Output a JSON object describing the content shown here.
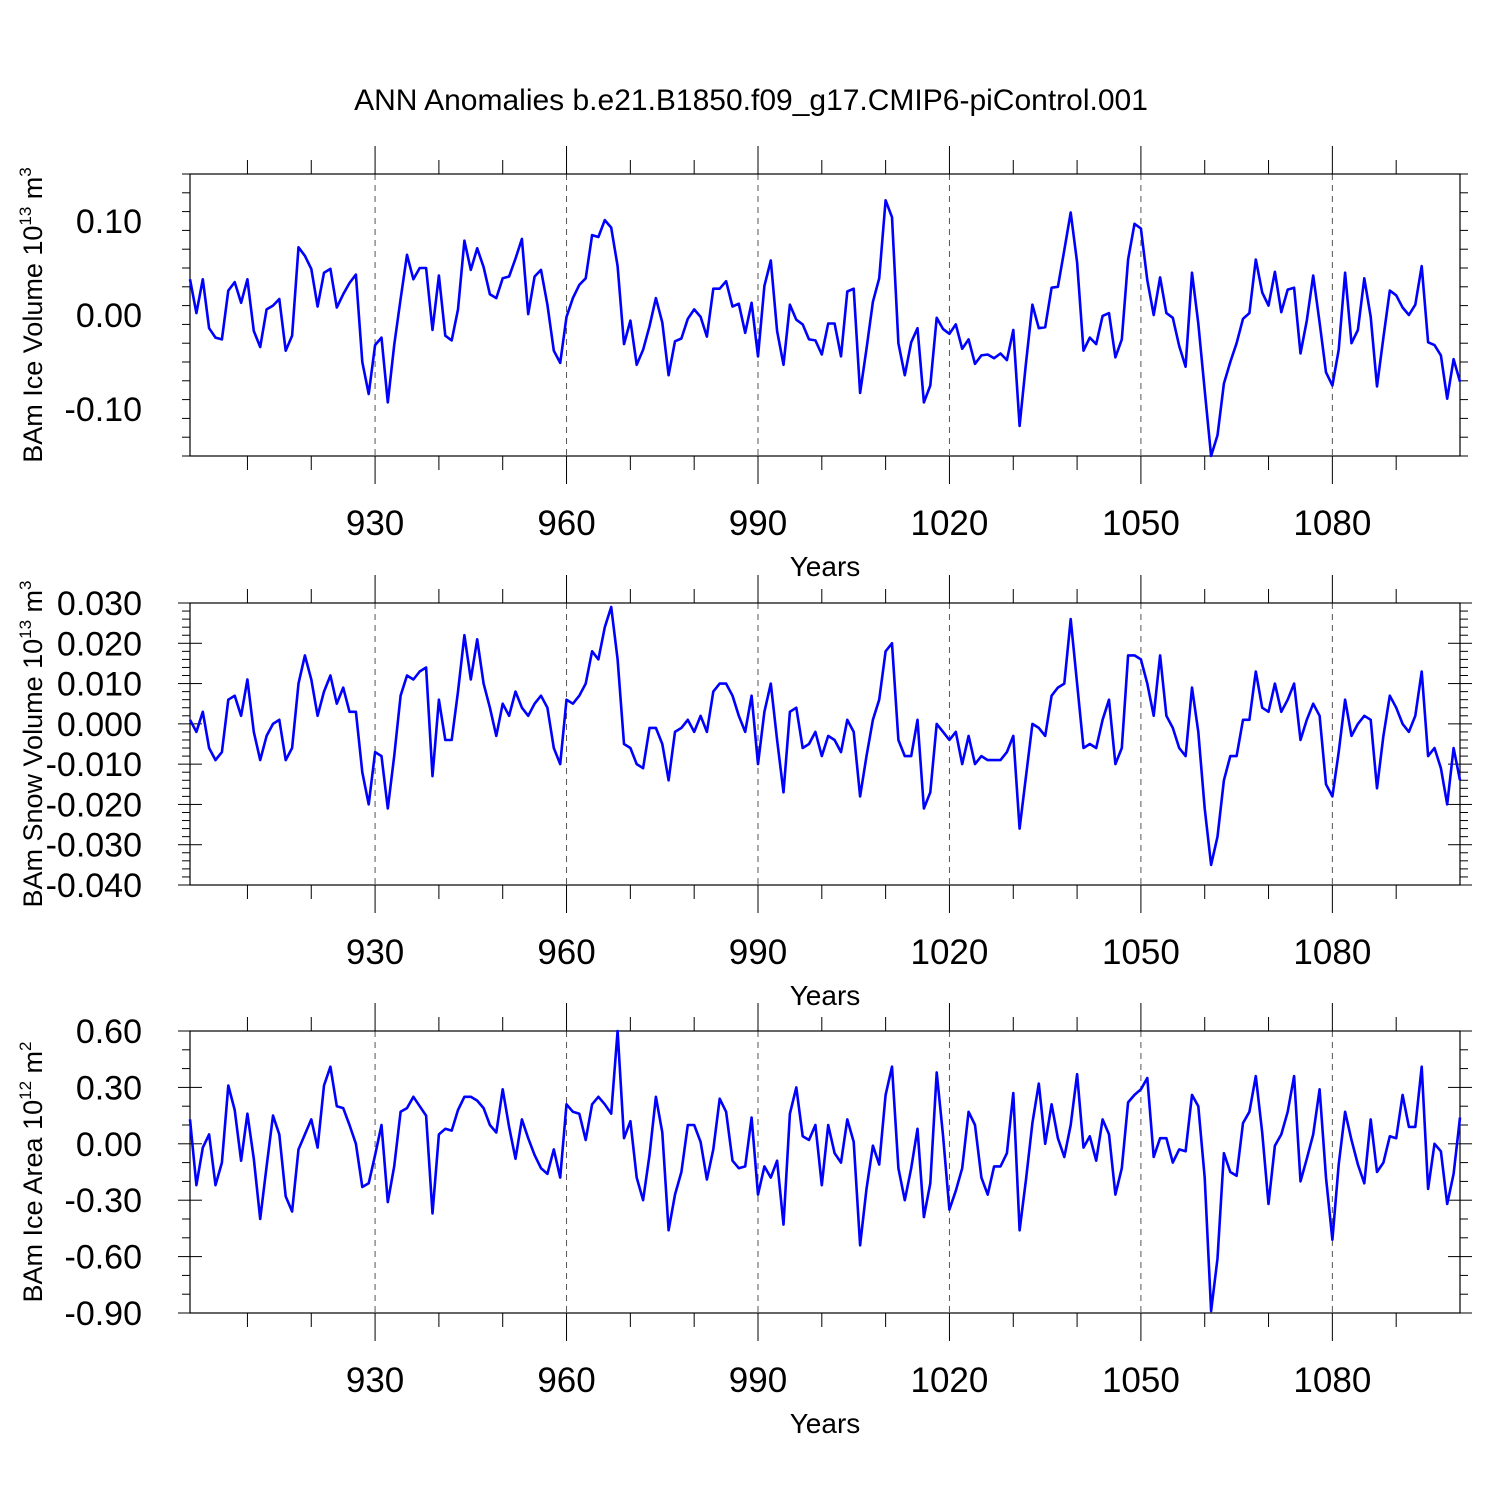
{
  "title": "ANN Anomalies b.e21.B1850.f09_g17.CMIP6-piControl.001",
  "line_color": "#0000ff",
  "chart_data": [
    {
      "type": "line",
      "ylabel_main": "BAm Ice Volume 10",
      "ylabel_exp": "13",
      "ylabel_unit": " m",
      "ylabel_unit_exp": "3",
      "xlabel": "Years",
      "xlim": [
        901,
        1100
      ],
      "ylim": [
        -0.15,
        0.15
      ],
      "x_ticks": [
        930,
        960,
        990,
        1020,
        1050,
        1080
      ],
      "x_tick_labels": [
        "930",
        "960",
        "990",
        "1020",
        "1050",
        "1080"
      ],
      "y_ticks": [
        -0.1,
        0.0,
        0.1
      ],
      "y_tick_labels": [
        "-0.10",
        "0.00",
        "0.10"
      ],
      "y_minor_step": 0.02,
      "x_start": 901,
      "values": [
        0.038,
        0.002,
        0.038,
        -0.014,
        -0.024,
        -0.026,
        0.026,
        0.035,
        0.013,
        0.038,
        -0.017,
        -0.034,
        0.006,
        0.01,
        0.017,
        -0.038,
        -0.022,
        0.072,
        0.063,
        0.049,
        0.009,
        0.045,
        0.049,
        0.008,
        0.022,
        0.034,
        0.043,
        -0.05,
        -0.084,
        -0.032,
        -0.024,
        -0.093,
        -0.032,
        0.017,
        0.064,
        0.038,
        0.05,
        0.05,
        -0.016,
        0.042,
        -0.022,
        -0.027,
        0.006,
        0.079,
        0.048,
        0.071,
        0.051,
        0.022,
        0.018,
        0.039,
        0.041,
        0.06,
        0.081,
        0.001,
        0.041,
        0.048,
        0.011,
        -0.038,
        -0.051,
        -0.002,
        0.018,
        0.032,
        0.039,
        0.085,
        0.083,
        0.101,
        0.093,
        0.052,
        -0.031,
        -0.006,
        -0.053,
        -0.037,
        -0.012,
        0.018,
        -0.008,
        -0.064,
        -0.028,
        -0.025,
        -0.004,
        0.006,
        -0.002,
        -0.023,
        0.028,
        0.028,
        0.036,
        0.009,
        0.012,
        -0.019,
        0.013,
        -0.044,
        0.031,
        0.058,
        -0.017,
        -0.053,
        0.011,
        -0.005,
        -0.01,
        -0.026,
        -0.027,
        -0.042,
        -0.009,
        -0.009,
        -0.044,
        0.025,
        0.028,
        -0.083,
        -0.036,
        0.014,
        0.039,
        0.122,
        0.104,
        -0.03,
        -0.064,
        -0.029,
        -0.014,
        -0.093,
        -0.075,
        -0.003,
        -0.015,
        -0.02,
        -0.01,
        -0.036,
        -0.026,
        -0.052,
        -0.043,
        -0.042,
        -0.046,
        -0.041,
        -0.048,
        -0.016,
        -0.118,
        -0.051,
        0.011,
        -0.014,
        -0.013,
        0.029,
        0.03,
        0.069,
        0.109,
        0.056,
        -0.038,
        -0.024,
        -0.031,
        -0.001,
        0.002,
        -0.045,
        -0.026,
        0.059,
        0.097,
        0.092,
        0.037,
        0.0,
        0.04,
        0.002,
        -0.003,
        -0.033,
        -0.055,
        0.045,
        -0.009,
        -0.08,
        -0.15,
        -0.128,
        -0.073,
        -0.05,
        -0.03,
        -0.004,
        0.002,
        0.059,
        0.024,
        0.01,
        0.046,
        0.003,
        0.027,
        0.029,
        -0.041,
        -0.006,
        0.042,
        -0.008,
        -0.061,
        -0.075,
        -0.037,
        0.045,
        -0.03,
        -0.016,
        0.039,
        -0.002,
        -0.076,
        -0.024,
        0.026,
        0.021,
        0.008,
        0.0,
        0.011,
        0.052,
        -0.029,
        -0.032,
        -0.043,
        -0.089,
        -0.047,
        -0.071
      ]
    },
    {
      "type": "line",
      "ylabel_main": "BAm Snow Volume 10",
      "ylabel_exp": "13",
      "ylabel_unit": " m",
      "ylabel_unit_exp": "3",
      "xlabel": "Years",
      "xlim": [
        901,
        1100
      ],
      "ylim": [
        -0.04,
        0.03
      ],
      "x_ticks": [
        930,
        960,
        990,
        1020,
        1050,
        1080
      ],
      "x_tick_labels": [
        "930",
        "960",
        "990",
        "1020",
        "1050",
        "1080"
      ],
      "y_ticks": [
        -0.04,
        -0.03,
        -0.02,
        -0.01,
        0.0,
        0.01,
        0.02,
        0.03
      ],
      "y_tick_labels": [
        "-0.040",
        "-0.030",
        "-0.020",
        "-0.010",
        "0.000",
        "0.010",
        "0.020",
        "0.030"
      ],
      "y_minor_step": 0.002,
      "x_start": 901,
      "values": [
        0.001,
        -0.002,
        0.003,
        -0.006,
        -0.009,
        -0.007,
        0.006,
        0.007,
        0.002,
        0.011,
        -0.002,
        -0.009,
        -0.003,
        0.0,
        0.001,
        -0.009,
        -0.006,
        0.01,
        0.017,
        0.011,
        0.002,
        0.008,
        0.012,
        0.005,
        0.009,
        0.003,
        0.003,
        -0.012,
        -0.02,
        -0.007,
        -0.008,
        -0.021,
        -0.008,
        0.007,
        0.012,
        0.011,
        0.013,
        0.014,
        -0.013,
        0.006,
        -0.004,
        -0.004,
        0.008,
        0.022,
        0.011,
        0.021,
        0.01,
        0.004,
        -0.003,
        0.005,
        0.002,
        0.008,
        0.004,
        0.002,
        0.005,
        0.007,
        0.004,
        -0.006,
        -0.01,
        0.006,
        0.005,
        0.007,
        0.01,
        0.018,
        0.016,
        0.024,
        0.029,
        0.016,
        -0.005,
        -0.006,
        -0.01,
        -0.011,
        -0.001,
        -0.001,
        -0.005,
        -0.014,
        -0.002,
        -0.001,
        0.001,
        -0.002,
        0.002,
        -0.002,
        0.008,
        0.01,
        0.01,
        0.007,
        0.002,
        -0.002,
        0.007,
        -0.01,
        0.003,
        0.01,
        -0.004,
        -0.017,
        0.003,
        0.004,
        -0.006,
        -0.005,
        -0.002,
        -0.008,
        -0.003,
        -0.004,
        -0.007,
        0.001,
        -0.002,
        -0.018,
        -0.008,
        0.001,
        0.006,
        0.018,
        0.02,
        -0.004,
        -0.008,
        -0.008,
        0.001,
        -0.021,
        -0.017,
        0.0,
        -0.002,
        -0.004,
        -0.002,
        -0.01,
        -0.003,
        -0.01,
        -0.008,
        -0.009,
        -0.009,
        -0.009,
        -0.007,
        -0.003,
        -0.026,
        -0.013,
        0.0,
        -0.001,
        -0.003,
        0.007,
        0.009,
        0.01,
        0.026,
        0.01,
        -0.006,
        -0.005,
        -0.006,
        0.001,
        0.006,
        -0.01,
        -0.006,
        0.017,
        0.017,
        0.016,
        0.01,
        0.002,
        0.017,
        0.002,
        -0.001,
        -0.006,
        -0.008,
        0.009,
        -0.002,
        -0.021,
        -0.035,
        -0.028,
        -0.014,
        -0.008,
        -0.008,
        0.001,
        0.001,
        0.013,
        0.004,
        0.003,
        0.01,
        0.003,
        0.006,
        0.01,
        -0.004,
        0.001,
        0.005,
        0.002,
        -0.015,
        -0.018,
        -0.007,
        0.006,
        -0.003,
        0.0,
        0.002,
        0.001,
        -0.016,
        -0.003,
        0.007,
        0.004,
        0.0,
        -0.002,
        0.002,
        0.013,
        -0.008,
        -0.006,
        -0.011,
        -0.02,
        -0.006,
        -0.014
      ]
    },
    {
      "type": "line",
      "ylabel_main": "BAm Ice Area 10",
      "ylabel_exp": "12",
      "ylabel_unit": " m",
      "ylabel_unit_exp": "2",
      "xlabel": "Years",
      "xlim": [
        901,
        1100
      ],
      "ylim": [
        -0.9,
        0.6
      ],
      "x_ticks": [
        930,
        960,
        990,
        1020,
        1050,
        1080
      ],
      "x_tick_labels": [
        "930",
        "960",
        "990",
        "1020",
        "1050",
        "1080"
      ],
      "y_ticks": [
        -0.9,
        -0.6,
        -0.3,
        0.0,
        0.3,
        0.6
      ],
      "y_tick_labels": [
        "-0.90",
        "-0.60",
        "-0.30",
        "0.00",
        "0.30",
        "0.60"
      ],
      "y_minor_step": 0.1,
      "x_start": 901,
      "values": [
        0.13,
        -0.22,
        -0.02,
        0.05,
        -0.22,
        -0.1,
        0.31,
        0.18,
        -0.09,
        0.16,
        -0.08,
        -0.4,
        -0.12,
        0.15,
        0.05,
        -0.28,
        -0.36,
        -0.03,
        0.05,
        0.13,
        -0.02,
        0.31,
        0.41,
        0.2,
        0.19,
        0.1,
        0.0,
        -0.23,
        -0.21,
        -0.06,
        0.1,
        -0.31,
        -0.12,
        0.17,
        0.19,
        0.25,
        0.2,
        0.15,
        -0.37,
        0.05,
        0.08,
        0.07,
        0.18,
        0.25,
        0.25,
        0.23,
        0.19,
        0.1,
        0.06,
        0.29,
        0.09,
        -0.08,
        0.13,
        0.03,
        -0.06,
        -0.13,
        -0.16,
        -0.03,
        -0.18,
        0.21,
        0.17,
        0.16,
        0.02,
        0.21,
        0.25,
        0.21,
        0.16,
        0.6,
        0.03,
        0.12,
        -0.18,
        -0.3,
        -0.06,
        0.25,
        0.06,
        -0.46,
        -0.27,
        -0.15,
        0.1,
        0.1,
        0.01,
        -0.19,
        -0.03,
        0.24,
        0.17,
        -0.09,
        -0.13,
        -0.12,
        0.14,
        -0.27,
        -0.12,
        -0.18,
        -0.09,
        -0.43,
        0.16,
        0.3,
        0.04,
        0.02,
        0.1,
        -0.22,
        0.1,
        -0.05,
        -0.1,
        0.13,
        0.01,
        -0.54,
        -0.24,
        -0.01,
        -0.11,
        0.26,
        0.41,
        -0.13,
        -0.3,
        -0.13,
        0.08,
        -0.39,
        -0.21,
        0.38,
        0.04,
        -0.35,
        -0.25,
        -0.13,
        0.17,
        0.1,
        -0.18,
        -0.27,
        -0.12,
        -0.12,
        -0.05,
        0.27,
        -0.46,
        -0.19,
        0.11,
        0.32,
        0.0,
        0.21,
        0.03,
        -0.07,
        0.1,
        0.37,
        -0.02,
        0.04,
        -0.09,
        0.13,
        0.05,
        -0.27,
        -0.13,
        0.22,
        0.26,
        0.29,
        0.35,
        -0.07,
        0.03,
        0.03,
        -0.1,
        -0.03,
        -0.04,
        0.26,
        0.2,
        -0.18,
        -0.89,
        -0.61,
        -0.05,
        -0.15,
        -0.17,
        0.11,
        0.17,
        0.36,
        0.06,
        -0.32,
        -0.01,
        0.05,
        0.17,
        0.36,
        -0.2,
        -0.08,
        0.05,
        0.29,
        -0.18,
        -0.51,
        -0.11,
        0.17,
        0.02,
        -0.11,
        -0.21,
        0.13,
        -0.15,
        -0.1,
        0.04,
        0.03,
        0.26,
        0.09,
        0.09,
        0.41,
        -0.24,
        0.0,
        -0.04,
        -0.32,
        -0.16,
        0.14
      ]
    }
  ]
}
